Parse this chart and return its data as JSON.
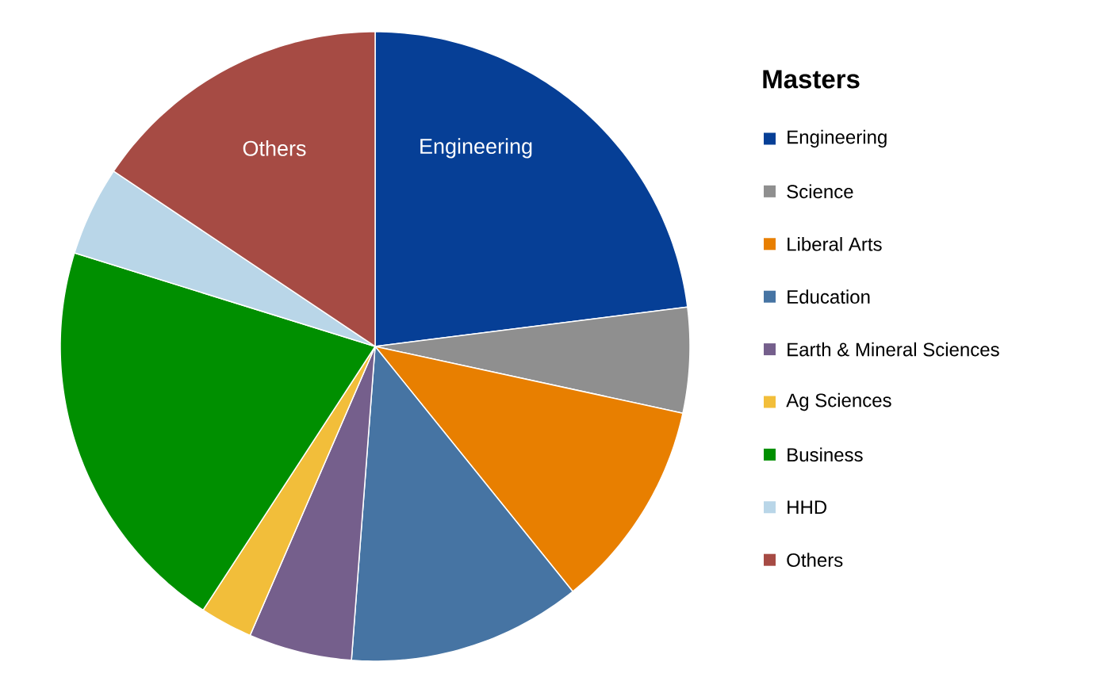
{
  "chart_data": {
    "type": "pie",
    "legend_title": "Masters",
    "legend": "right",
    "categories": [
      "Engineering",
      "Science",
      "Liberal Arts",
      "Education",
      "Earth & Mineral Sciences",
      "Ag Sciences",
      "Business",
      "HHD",
      "Others"
    ],
    "values": [
      23.0,
      5.4,
      10.8,
      12.0,
      5.3,
      2.7,
      20.6,
      4.6,
      15.6
    ],
    "colors": [
      "#063f96",
      "#8f8f8f",
      "#e87f00",
      "#4674a3",
      "#755f8c",
      "#f2be3a",
      "#008f00",
      "#b9d6e8",
      "#a64b44"
    ],
    "annotations": [
      "Engineering",
      "Others"
    ]
  }
}
